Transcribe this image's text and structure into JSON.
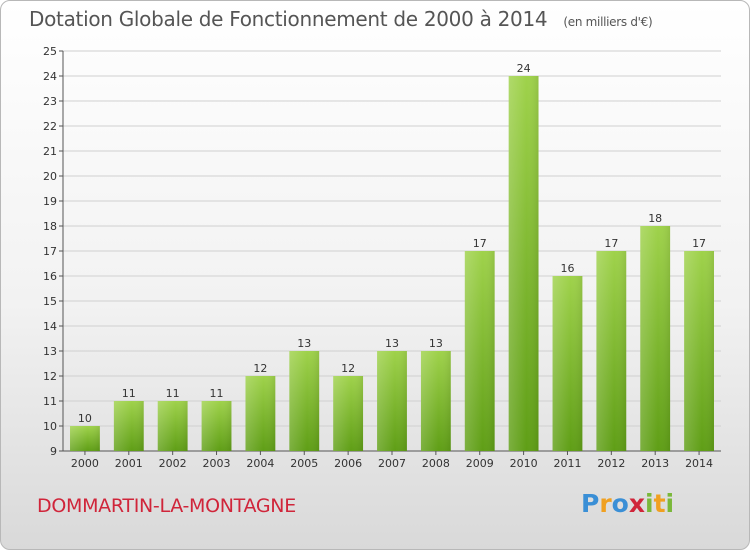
{
  "header": {
    "title": "Dotation Globale de Fonctionnement de 2000 à 2014",
    "unit": "(en milliers d'€)"
  },
  "footer": {
    "commune": "DOMMARTIN-LA-MONTAGNE",
    "logo_letters": [
      {
        "ch": "P",
        "color": "#3a8fd6"
      },
      {
        "ch": "r",
        "color": "#f0a020"
      },
      {
        "ch": "o",
        "color": "#3a8fd6"
      },
      {
        "ch": "x",
        "color": "#d0253a"
      },
      {
        "ch": "i",
        "color": "#7ab83a"
      },
      {
        "ch": "t",
        "color": "#f0a020"
      },
      {
        "ch": "i",
        "color": "#7ab83a"
      }
    ]
  },
  "colors": {
    "bar_top": "#9fd24b",
    "bar_bottom": "#5f9e16",
    "grid": "#d0d0d0"
  },
  "chart_data": {
    "type": "bar",
    "title": "Dotation Globale de Fonctionnement de 2000 à 2014",
    "subtitle": "(en milliers d'€)",
    "categories": [
      "2000",
      "2001",
      "2002",
      "2003",
      "2004",
      "2005",
      "2006",
      "2007",
      "2008",
      "2009",
      "2010",
      "2011",
      "2012",
      "2013",
      "2014"
    ],
    "values": [
      10,
      11,
      11,
      11,
      12,
      13,
      12,
      13,
      13,
      17,
      24,
      16,
      17,
      18,
      17
    ],
    "ylim": [
      9,
      25
    ],
    "yticks": [
      9,
      10,
      11,
      12,
      13,
      14,
      15,
      16,
      17,
      18,
      19,
      20,
      21,
      22,
      23,
      24,
      25
    ],
    "grid": true,
    "xlabel": "",
    "ylabel": ""
  }
}
